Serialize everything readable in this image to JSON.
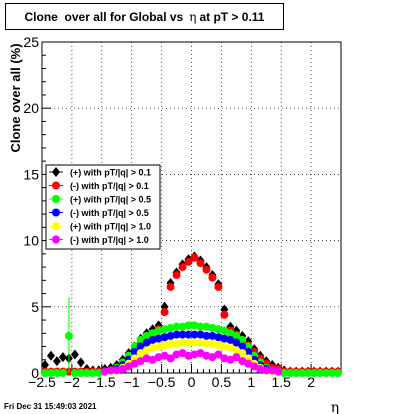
{
  "title": {
    "prefix": "Clone  over all for Global vs",
    "symbol": "η",
    "suffix": "at pT > 0.11"
  },
  "footer_text": "Fri Dec 31 15:49:03 2021",
  "chart_data": {
    "type": "scatter",
    "title": "Clone  over all for Global vs η at pT > 0.11",
    "xlabel": "η",
    "ylabel": "Clone  over all (%)",
    "xlim": [
      -2.5,
      2.5
    ],
    "ylim": [
      0,
      25
    ],
    "x_ticks": [
      -2.5,
      -2,
      -1.5,
      -1,
      -0.5,
      0,
      0.5,
      1,
      1.5,
      2
    ],
    "x_tick_labels": [
      "−2.5",
      "−2",
      "−1.5",
      "−1",
      "−0.5",
      "0",
      "0.5",
      "1",
      "1.5",
      "2"
    ],
    "y_ticks": [
      0,
      5,
      10,
      15,
      20,
      25
    ],
    "y_tick_labels": [
      "0",
      "5",
      "10",
      "15",
      "20",
      "25"
    ],
    "grid": true,
    "legend_position": "left-middle",
    "series": [
      {
        "name": "(+) with pT/|q| > 0.1",
        "color": "#000000",
        "marker": "diamond",
        "x": [
          -2.45,
          -2.35,
          -2.25,
          -2.15,
          -2.05,
          -1.95,
          -1.85,
          -1.75,
          -1.65,
          -1.55,
          -1.45,
          -1.35,
          -1.25,
          -1.15,
          -1.05,
          -0.95,
          -0.85,
          -0.75,
          -0.65,
          -0.55,
          -0.45,
          -0.35,
          -0.25,
          -0.15,
          -0.05,
          0.05,
          0.15,
          0.25,
          0.35,
          0.45,
          0.55,
          0.65,
          0.75,
          0.85,
          0.95,
          1.05,
          1.15,
          1.25,
          1.35,
          1.45,
          1.55,
          1.65,
          1.75,
          1.85,
          1.95,
          2.05,
          2.15,
          2.25,
          2.35,
          2.45
        ],
        "y": [
          0.6,
          1.3,
          0.9,
          1.2,
          1.1,
          1.4,
          0.8,
          0.3,
          0.2,
          0.2,
          0.3,
          0.4,
          0.6,
          1.0,
          1.5,
          2.0,
          2.6,
          3.0,
          3.3,
          3.6,
          5.0,
          6.8,
          7.6,
          8.2,
          8.6,
          8.8,
          8.5,
          8.0,
          7.4,
          6.7,
          4.8,
          3.5,
          3.2,
          2.8,
          2.4,
          1.8,
          1.3,
          0.9,
          0.6,
          0.4,
          0.2,
          0.1,
          0.1,
          0.1,
          0.1,
          0.1,
          0.1,
          0.1,
          0.1,
          0.1
        ]
      },
      {
        "name": "(-) with pT/|q| > 0.1",
        "color": "#ff0000",
        "marker": "circle",
        "x": [
          -2.45,
          -2.35,
          -2.25,
          -2.15,
          -2.05,
          -1.95,
          -1.85,
          -1.75,
          -1.65,
          -1.55,
          -1.45,
          -1.35,
          -1.25,
          -1.15,
          -1.05,
          -0.95,
          -0.85,
          -0.75,
          -0.65,
          -0.55,
          -0.45,
          -0.35,
          -0.25,
          -0.15,
          -0.05,
          0.05,
          0.15,
          0.25,
          0.35,
          0.45,
          0.55,
          0.65,
          0.75,
          0.85,
          0.95,
          1.05,
          1.15,
          1.25,
          1.35,
          1.45,
          1.55,
          1.65,
          1.75,
          1.85,
          1.95,
          2.05,
          2.15,
          2.25,
          2.35,
          2.45
        ],
        "y": [
          0.1,
          0.1,
          0.1,
          0.1,
          0.1,
          0.1,
          0.1,
          0.1,
          0.1,
          0.1,
          0.1,
          0.2,
          0.4,
          0.8,
          1.3,
          1.8,
          2.3,
          2.7,
          3.0,
          3.3,
          4.6,
          6.5,
          7.4,
          8.0,
          8.4,
          8.7,
          8.3,
          7.8,
          7.2,
          6.5,
          4.4,
          3.2,
          2.9,
          2.5,
          2.1,
          1.6,
          1.1,
          0.7,
          0.4,
          0.3,
          0.1,
          0.1,
          0.1,
          0.1,
          0.1,
          0.1,
          0.1,
          0.1,
          0.1,
          0.1
        ]
      },
      {
        "name": "(+) with pT/|q| > 0.5",
        "color": "#00ff00",
        "marker": "circle",
        "x": [
          -2.45,
          -2.35,
          -2.25,
          -2.15,
          -2.05,
          -1.95,
          -1.85,
          -1.75,
          -1.65,
          -1.55,
          -1.45,
          -1.35,
          -1.25,
          -1.15,
          -1.05,
          -0.95,
          -0.85,
          -0.75,
          -0.65,
          -0.55,
          -0.45,
          -0.35,
          -0.25,
          -0.15,
          -0.05,
          0.05,
          0.15,
          0.25,
          0.35,
          0.45,
          0.55,
          0.65,
          0.75,
          0.85,
          0.95,
          1.05,
          1.15,
          1.25,
          1.35,
          1.45,
          1.55,
          1.65,
          1.75,
          1.85,
          1.95,
          2.05,
          2.15,
          2.25,
          2.35,
          2.45
        ],
        "y": [
          0.0,
          0.0,
          0.0,
          0.0,
          2.8,
          0.0,
          0.0,
          0.0,
          0.0,
          0.0,
          0.1,
          0.2,
          0.4,
          0.8,
          1.3,
          2.0,
          2.5,
          2.8,
          3.0,
          3.2,
          3.3,
          3.4,
          3.5,
          3.5,
          3.6,
          3.6,
          3.5,
          3.5,
          3.4,
          3.3,
          3.2,
          3.0,
          2.8,
          2.5,
          2.0,
          1.3,
          0.8,
          0.4,
          0.2,
          0.1,
          0.0,
          0.0,
          0.0,
          0.0,
          0.0,
          0.0,
          0.0,
          0.0,
          0.0,
          0.0
        ],
        "err": [
          0,
          0,
          0,
          0,
          2.9,
          0,
          0,
          0,
          0,
          0,
          0,
          0,
          0,
          0,
          0,
          0,
          0,
          0,
          0,
          0,
          0,
          0,
          0,
          0,
          0,
          0,
          0,
          0,
          0,
          0,
          0,
          0,
          0,
          0,
          0,
          0,
          0,
          0,
          0,
          0,
          0,
          0,
          0,
          0,
          0,
          0,
          0,
          0,
          0,
          0
        ]
      },
      {
        "name": "(-) with pT/|q| > 0.5",
        "color": "#0000ff",
        "marker": "circle",
        "x": [
          -1.45,
          -1.35,
          -1.25,
          -1.15,
          -1.05,
          -0.95,
          -0.85,
          -0.75,
          -0.65,
          -0.55,
          -0.45,
          -0.35,
          -0.25,
          -0.15,
          -0.05,
          0.05,
          0.15,
          0.25,
          0.35,
          0.45,
          0.55,
          0.65,
          0.75,
          0.85,
          0.95,
          1.05,
          1.15,
          1.25,
          1.35,
          1.45
        ],
        "y": [
          0.1,
          0.2,
          0.3,
          0.6,
          1.0,
          1.6,
          2.0,
          2.3,
          2.5,
          2.6,
          2.7,
          2.8,
          2.9,
          2.9,
          2.9,
          2.9,
          2.9,
          2.8,
          2.8,
          2.7,
          2.6,
          2.5,
          2.3,
          2.0,
          1.6,
          1.0,
          0.6,
          0.3,
          0.2,
          0.1
        ]
      },
      {
        "name": "(+) with pT/|q| > 1.0",
        "color": "#ffff00",
        "marker": "circle",
        "x": [
          -1.45,
          -1.35,
          -1.25,
          -1.15,
          -1.05,
          -0.95,
          -0.85,
          -0.75,
          -0.65,
          -0.55,
          -0.45,
          -0.35,
          -0.25,
          -0.15,
          -0.05,
          0.05,
          0.15,
          0.25,
          0.35,
          0.45,
          0.55,
          0.65,
          0.75,
          0.85,
          0.95,
          1.05,
          1.15,
          1.25,
          1.35,
          1.45
        ],
        "y": [
          0.1,
          0.1,
          0.2,
          0.4,
          0.7,
          1.1,
          1.5,
          1.7,
          1.9,
          2.0,
          2.1,
          2.2,
          2.2,
          2.3,
          2.3,
          2.3,
          2.3,
          2.2,
          2.2,
          2.1,
          2.0,
          1.9,
          1.7,
          1.5,
          1.1,
          0.7,
          0.4,
          0.2,
          0.1,
          0.1
        ]
      },
      {
        "name": "(-) with pT/|q| > 1.0",
        "color": "#ff00ff",
        "marker": "circle",
        "x": [
          -1.45,
          -1.35,
          -1.25,
          -1.15,
          -1.05,
          -0.95,
          -0.85,
          -0.75,
          -0.65,
          -0.55,
          -0.45,
          -0.35,
          -0.25,
          -0.15,
          -0.05,
          0.05,
          0.15,
          0.25,
          0.35,
          0.45,
          0.55,
          0.65,
          0.75,
          0.85,
          0.95,
          1.05,
          1.15,
          1.25,
          1.35,
          1.45
        ],
        "y": [
          0.1,
          0.2,
          0.2,
          0.3,
          0.5,
          0.7,
          0.9,
          1.1,
          1.0,
          1.2,
          1.3,
          1.1,
          1.4,
          1.5,
          1.3,
          1.4,
          1.5,
          1.3,
          1.2,
          1.4,
          1.1,
          1.0,
          1.2,
          0.9,
          0.7,
          0.5,
          0.3,
          0.2,
          0.2,
          0.1
        ]
      }
    ]
  }
}
